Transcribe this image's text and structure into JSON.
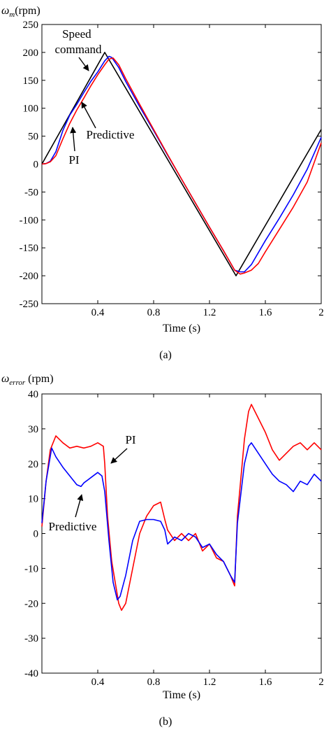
{
  "chart_data": [
    {
      "type": "line",
      "caption": "(a)",
      "ylabel": "ω_m (rpm)",
      "ylabel_symbol": "ω",
      "ylabel_sub": "m",
      "ylabel_unit": "(rpm)",
      "xlabel": "Time (s)",
      "xlim": [
        0,
        2
      ],
      "ylim": [
        -250,
        250
      ],
      "xticks": [
        0.4,
        0.8,
        1.2,
        1.6,
        2
      ],
      "xtick_labels": [
        "0.4",
        "0.8",
        "1.2",
        "1.6",
        "2"
      ],
      "yticks": [
        250,
        200,
        150,
        100,
        50,
        0,
        -50,
        -100,
        -150,
        -200,
        -250
      ],
      "ytick_labels": [
        "250",
        "200",
        "150",
        "100",
        "50",
        "0",
        "-50",
        "-100",
        "-150",
        "-200",
        "-250"
      ],
      "series": [
        {
          "key": "command",
          "color": "#000000",
          "x": [
            0,
            0.45,
            1.39,
            2.0
          ],
          "y": [
            0,
            200,
            -200,
            62
          ]
        },
        {
          "key": "predictive",
          "color": "#0000ff",
          "x": [
            0,
            0.03,
            0.06,
            0.1,
            0.15,
            0.2,
            0.25,
            0.3,
            0.35,
            0.4,
            0.45,
            0.48,
            0.5,
            0.55,
            0.6,
            0.7,
            0.8,
            0.9,
            1.0,
            1.1,
            1.2,
            1.3,
            1.38,
            1.42,
            1.45,
            1.5,
            1.6,
            1.7,
            1.8,
            1.9,
            2.0
          ],
          "y": [
            0,
            1,
            5,
            22,
            60,
            88,
            107,
            128,
            148,
            165,
            185,
            193,
            191,
            173,
            148,
            103,
            60,
            16,
            -27,
            -70,
            -113,
            -155,
            -190,
            -193,
            -193,
            -180,
            -137,
            -97,
            -55,
            -9,
            48
          ]
        },
        {
          "key": "pi",
          "color": "#ff0000",
          "x": [
            0,
            0.03,
            0.06,
            0.1,
            0.15,
            0.2,
            0.25,
            0.3,
            0.35,
            0.4,
            0.45,
            0.48,
            0.51,
            0.55,
            0.6,
            0.7,
            0.8,
            0.9,
            1.0,
            1.1,
            1.2,
            1.3,
            1.38,
            1.42,
            1.45,
            1.5,
            1.55,
            1.6,
            1.7,
            1.8,
            1.9,
            2.0
          ],
          "y": [
            0,
            1,
            4,
            15,
            45,
            73,
            97,
            118,
            140,
            160,
            178,
            188,
            190,
            178,
            153,
            107,
            62,
            17,
            -27,
            -70,
            -113,
            -155,
            -190,
            -197,
            -195,
            -190,
            -178,
            -157,
            -117,
            -77,
            -32,
            38
          ]
        }
      ],
      "annotations": [
        {
          "text": "Speed command",
          "line1": "Speed",
          "line2": "command"
        },
        {
          "text": "Predictive"
        },
        {
          "text": "PI"
        }
      ]
    },
    {
      "type": "line",
      "caption": "(b)",
      "ylabel": "ω_error (rpm)",
      "ylabel_symbol": "ω",
      "ylabel_sub": "error",
      "ylabel_unit": "(rpm)",
      "xlabel": "Time (s)",
      "xlim": [
        0,
        2
      ],
      "ylim": [
        -40,
        40
      ],
      "xticks": [
        0.4,
        0.8,
        1.2,
        1.6,
        2
      ],
      "xtick_labels": [
        "0.4",
        "0.8",
        "1.2",
        "1.6",
        "2"
      ],
      "yticks": [
        40,
        30,
        20,
        10,
        0,
        -10,
        -20,
        -30,
        -40
      ],
      "ytick_labels": [
        "40",
        "30",
        "20",
        "10",
        "0",
        "-10",
        "-20",
        "-30",
        "-40"
      ],
      "series": [
        {
          "key": "pi",
          "color": "#ff0000",
          "x": [
            0,
            0.03,
            0.06,
            0.1,
            0.15,
            0.2,
            0.25,
            0.3,
            0.35,
            0.4,
            0.44,
            0.45,
            0.47,
            0.5,
            0.55,
            0.57,
            0.6,
            0.65,
            0.7,
            0.75,
            0.8,
            0.85,
            0.88,
            0.9,
            0.95,
            1.0,
            1.05,
            1.1,
            1.15,
            1.2,
            1.25,
            1.3,
            1.35,
            1.38,
            1.4,
            1.45,
            1.48,
            1.5,
            1.55,
            1.6,
            1.65,
            1.7,
            1.75,
            1.8,
            1.85,
            1.9,
            1.95,
            2.0
          ],
          "y": [
            2,
            15,
            24,
            28,
            26,
            24.5,
            25,
            24.5,
            25,
            26,
            25,
            20,
            5,
            -8,
            -20,
            -22,
            -20,
            -10,
            0,
            5,
            8,
            9,
            4,
            1,
            -2,
            0,
            -2,
            0,
            -5,
            -3,
            -7,
            -8,
            -12,
            -15,
            5,
            27,
            35,
            37,
            33,
            29,
            24,
            21,
            23,
            25,
            26,
            24,
            26,
            24
          ]
        },
        {
          "key": "predictive",
          "color": "#0000ff",
          "x": [
            0,
            0.03,
            0.07,
            0.1,
            0.15,
            0.2,
            0.25,
            0.28,
            0.3,
            0.35,
            0.4,
            0.43,
            0.45,
            0.48,
            0.51,
            0.54,
            0.56,
            0.6,
            0.65,
            0.7,
            0.75,
            0.8,
            0.85,
            0.88,
            0.9,
            0.95,
            1.0,
            1.05,
            1.1,
            1.15,
            1.2,
            1.25,
            1.3,
            1.35,
            1.38,
            1.4,
            1.45,
            1.48,
            1.5,
            1.55,
            1.6,
            1.65,
            1.7,
            1.75,
            1.8,
            1.85,
            1.9,
            1.95,
            2.0
          ],
          "y": [
            3,
            15,
            24.5,
            22,
            19,
            16.5,
            14,
            13.5,
            14.5,
            16,
            17.5,
            16.5,
            12,
            -2,
            -14,
            -19,
            -18,
            -12,
            -2,
            3.5,
            4,
            4,
            3.5,
            1,
            -3,
            -1,
            -2,
            0,
            -1,
            -4,
            -3,
            -6,
            -8,
            -12,
            -14,
            3,
            20,
            25,
            26,
            23,
            20,
            17,
            15,
            14,
            12,
            15,
            14,
            17,
            15
          ]
        }
      ],
      "annotations": [
        {
          "text": "PI"
        },
        {
          "text": "Predictive"
        }
      ]
    }
  ]
}
